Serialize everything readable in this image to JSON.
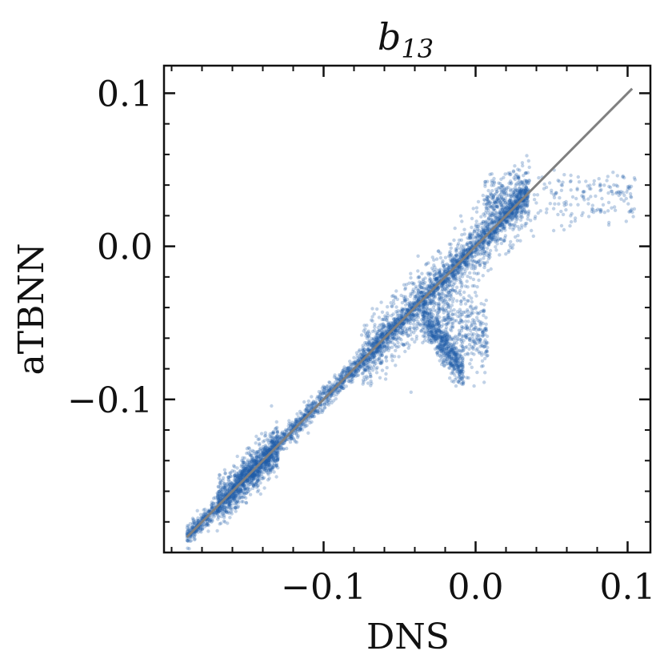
{
  "chart_data": {
    "type": "scatter",
    "title": {
      "symbol": "b",
      "subscript": "13"
    },
    "xlabel": "DNS",
    "ylabel": "aTBNN",
    "xlim": [
      -0.205,
      0.115
    ],
    "ylim": [
      -0.2,
      0.118
    ],
    "xticks": [
      {
        "value": -0.1,
        "label": "−0.1"
      },
      {
        "value": 0.0,
        "label": "0.0"
      },
      {
        "value": 0.1,
        "label": "0.1"
      }
    ],
    "yticks": [
      {
        "value": 0.1,
        "label": "0.1"
      },
      {
        "value": 0.0,
        "label": "0.0"
      },
      {
        "value": -0.1,
        "label": "−0.1"
      }
    ],
    "minor_tick_step": 0.02,
    "grid": false,
    "legend": "none",
    "colors": {
      "scatter": "#1f5fa8",
      "reference_line": "#808080",
      "axes": "#111111"
    },
    "reference_line": {
      "label": "y = x",
      "x": [
        -0.19,
        0.103
      ],
      "y": [
        -0.19,
        0.103
      ]
    },
    "series": [
      {
        "clusters": [
          {
            "x_range": [
              -0.19,
              0.035
            ],
            "slope": 1.0,
            "intercept": 0.0,
            "spread": 0.0035,
            "count": 2600
          },
          {
            "x_range": [
              -0.17,
              -0.13
            ],
            "slope": 1.0,
            "intercept": 0.0,
            "spread": 0.007,
            "count": 900
          },
          {
            "x_range": [
              -0.075,
              0.035
            ],
            "slope": 1.0,
            "intercept": 0.0,
            "spread": 0.011,
            "count": 1300
          },
          {
            "x_range": [
              -0.035,
              -0.008
            ],
            "slope": -1.4,
            "intercept": -0.094,
            "spread": 0.006,
            "count": 550
          },
          {
            "x_range": [
              -0.025,
              0.008
            ],
            "slope": -0.4,
            "intercept": -0.056,
            "spread": 0.012,
            "count": 350
          },
          {
            "x_range": [
              0.005,
              0.035
            ],
            "slope": 0.2,
            "intercept": 0.026,
            "spread": 0.008,
            "count": 250
          },
          {
            "x_range": [
              0.035,
              0.105
            ],
            "slope": 0.05,
            "intercept": 0.028,
            "spread": 0.009,
            "count": 170
          }
        ]
      }
    ]
  }
}
